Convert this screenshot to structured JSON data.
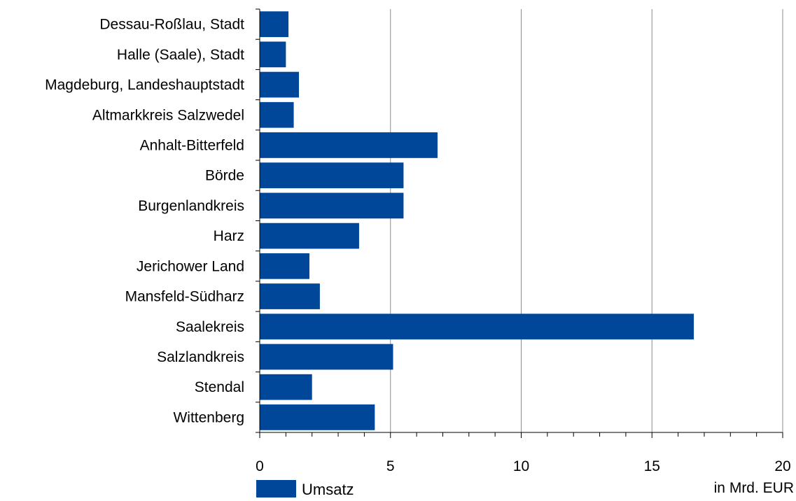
{
  "chart_data": {
    "type": "bar",
    "orientation": "horizontal",
    "categories": [
      "Dessau-Roßlau, Stadt",
      "Halle (Saale), Stadt",
      "Magdeburg, Landeshauptstadt",
      "Altmarkkreis Salzwedel",
      "Anhalt-Bitterfeld",
      "Börde",
      "Burgenlandkreis",
      "Harz",
      "Jerichower Land",
      "Mansfeld-Südharz",
      "Saalekreis",
      "Salzlandkreis",
      "Stendal",
      "Wittenberg"
    ],
    "series": [
      {
        "name": "Umsatz",
        "values": [
          1.1,
          1.0,
          1.5,
          1.3,
          6.8,
          5.5,
          5.5,
          3.8,
          1.9,
          2.3,
          16.6,
          5.1,
          2.0,
          4.4
        ]
      }
    ],
    "xlim": [
      0,
      20
    ],
    "x_ticks": [
      0,
      5,
      10,
      15,
      20
    ],
    "x_minor_step": 1,
    "xlabel": "in Mrd. EUR",
    "grid": "vertical-major",
    "legend_position": "bottom-left",
    "colors": {
      "bar": "#00479A",
      "grid": "#8C8C8C",
      "axis": "#000000"
    }
  }
}
